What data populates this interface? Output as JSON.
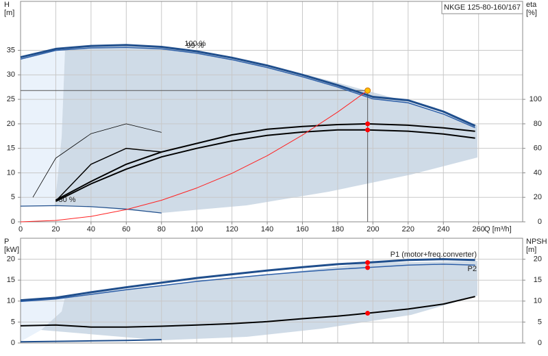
{
  "chart_data": [
    {
      "type": "line",
      "title": "NKGE 125-80-160/167",
      "x_label": "Q [m³/h]",
      "y_label": [
        "H",
        "[m]"
      ],
      "y2_label": [
        "eta",
        "[%]"
      ],
      "xlim": [
        0,
        285
      ],
      "xticks": [
        0,
        20,
        40,
        60,
        80,
        100,
        120,
        140,
        160,
        180,
        200,
        220,
        240,
        260
      ],
      "ylim": [
        0,
        45
      ],
      "yticks": [
        0,
        5,
        10,
        15,
        20,
        25,
        30,
        35
      ],
      "y2lim": [
        0,
        180
      ],
      "y2ticks": [
        0,
        20,
        40,
        60,
        80,
        100
      ],
      "grid": true,
      "series": [
        {
          "name": "100 %",
          "color": "#1f4e8c",
          "width": 3,
          "x": [
            0,
            20,
            40,
            60,
            80,
            100,
            120,
            140,
            160,
            180,
            200,
            220,
            240,
            258
          ],
          "values": [
            33.6,
            35.3,
            35.9,
            36.1,
            35.7,
            34.8,
            33.5,
            31.9,
            30.0,
            27.9,
            25.5,
            24.8,
            22.5,
            19.6
          ]
        },
        {
          "name": "99 %",
          "color": "#2d5fa8",
          "width": 1.5,
          "x": [
            0,
            20,
            40,
            60,
            80,
            100,
            120,
            140,
            160,
            180,
            200,
            220,
            240,
            258
          ],
          "values": [
            33.2,
            35.0,
            35.5,
            35.6,
            35.3,
            34.4,
            33.1,
            31.5,
            29.6,
            27.5,
            25.1,
            24.3,
            22.0,
            19.2
          ]
        },
        {
          "name": "30 %",
          "color": "#1f4e8c",
          "width": 1.2,
          "x": [
            0,
            20,
            40,
            60,
            80
          ],
          "values": [
            3.2,
            3.3,
            3.1,
            2.6,
            1.8
          ]
        },
        {
          "color": "#000000",
          "width": 2,
          "axis": "y2",
          "x": [
            20,
            40,
            60,
            80,
            100,
            120,
            140,
            160,
            180,
            197,
            220,
            240,
            258
          ],
          "values": [
            17.8,
            33,
            47,
            57,
            64,
            71,
            75.6,
            77.8,
            79.4,
            80,
            78.9,
            76.7,
            73.9
          ]
        },
        {
          "color": "#000000",
          "width": 2,
          "axis": "y2",
          "x": [
            20,
            40,
            60,
            80,
            100,
            120,
            140,
            160,
            180,
            197,
            220,
            240,
            258
          ],
          "values": [
            16.7,
            31,
            43,
            53,
            60,
            66,
            70.6,
            73.3,
            75,
            75,
            74,
            71.7,
            68.3
          ]
        },
        {
          "color": "#000000",
          "width": 0.8,
          "axis": "y2",
          "x": [
            7,
            20,
            40,
            60,
            80
          ],
          "values": [
            20,
            52,
            72,
            80,
            73
          ]
        },
        {
          "color": "#000000",
          "width": 1.5,
          "axis": "y2",
          "x": [
            20,
            40,
            60,
            80
          ],
          "values": [
            17,
            47,
            60,
            57
          ]
        },
        {
          "color": "#ff2020",
          "width": 1,
          "x": [
            0,
            20,
            40,
            60,
            80,
            100,
            120,
            140,
            160,
            180,
            197
          ],
          "values": [
            0,
            0.28,
            1.1,
            2.5,
            4.4,
            6.9,
            9.9,
            13.5,
            17.7,
            22.4,
            26.8
          ]
        }
      ],
      "duty_point": {
        "x": 197,
        "y": 26.8,
        "color": "#ffc000"
      },
      "points": [
        {
          "x": 197,
          "y": 80,
          "axis": "y2",
          "color": "#ff0000"
        },
        {
          "x": 197,
          "y": 75,
          "axis": "y2",
          "color": "#ff0000"
        }
      ]
    },
    {
      "type": "line",
      "y_label": [
        "P",
        "[kW]"
      ],
      "y2_label": [
        "NPSH",
        "[m]"
      ],
      "xlim": [
        0,
        285
      ],
      "xticks": [
        0,
        20,
        40,
        60,
        80,
        100,
        120,
        140,
        160,
        180,
        200,
        220,
        240,
        260
      ],
      "ylim": [
        0,
        25
      ],
      "yticks": [
        0,
        5,
        10,
        15,
        20
      ],
      "y2lim": [
        0,
        25
      ],
      "y2ticks": [
        0,
        5,
        10,
        15,
        20
      ],
      "grid": true,
      "series": [
        {
          "name": "P1 (motor+freq.converter)",
          "color": "#1f4e8c",
          "width": 3,
          "x": [
            0,
            20,
            40,
            60,
            80,
            100,
            120,
            140,
            160,
            180,
            197,
            220,
            240,
            258
          ],
          "values": [
            10.2,
            10.8,
            12.1,
            13.3,
            14.4,
            15.5,
            16.4,
            17.3,
            18.1,
            18.8,
            19.2,
            19.8,
            20.0,
            19.8
          ]
        },
        {
          "name": "P2",
          "color": "#2d5fa8",
          "width": 1.5,
          "x": [
            0,
            20,
            40,
            60,
            80,
            100,
            120,
            140,
            160,
            180,
            197,
            220,
            240,
            258
          ],
          "values": [
            9.9,
            10.5,
            11.6,
            12.7,
            13.7,
            14.7,
            15.5,
            16.3,
            17.0,
            17.6,
            18.0,
            18.6,
            18.8,
            18.6
          ]
        },
        {
          "color": "#000000",
          "width": 2,
          "axis": "y2",
          "x": [
            0,
            20,
            40,
            60,
            80,
            100,
            120,
            140,
            160,
            180,
            197,
            220,
            240,
            258
          ],
          "values": [
            4.1,
            4.3,
            3.8,
            3.8,
            4.0,
            4.3,
            4.6,
            5.1,
            5.8,
            6.4,
            7.1,
            8.1,
            9.3,
            11.1
          ]
        },
        {
          "color": "#1f4e8c",
          "width": 2,
          "x": [
            0,
            20,
            40,
            60,
            80
          ],
          "values": [
            0.3,
            0.4,
            0.5,
            0.6,
            0.8
          ]
        }
      ],
      "points": [
        {
          "x": 197,
          "y": 19.2,
          "color": "#ff0000"
        },
        {
          "x": 197,
          "y": 18.0,
          "color": "#ff0000"
        },
        {
          "x": 197,
          "y": 7.1,
          "axis": "y2",
          "color": "#ff0000"
        }
      ]
    }
  ]
}
